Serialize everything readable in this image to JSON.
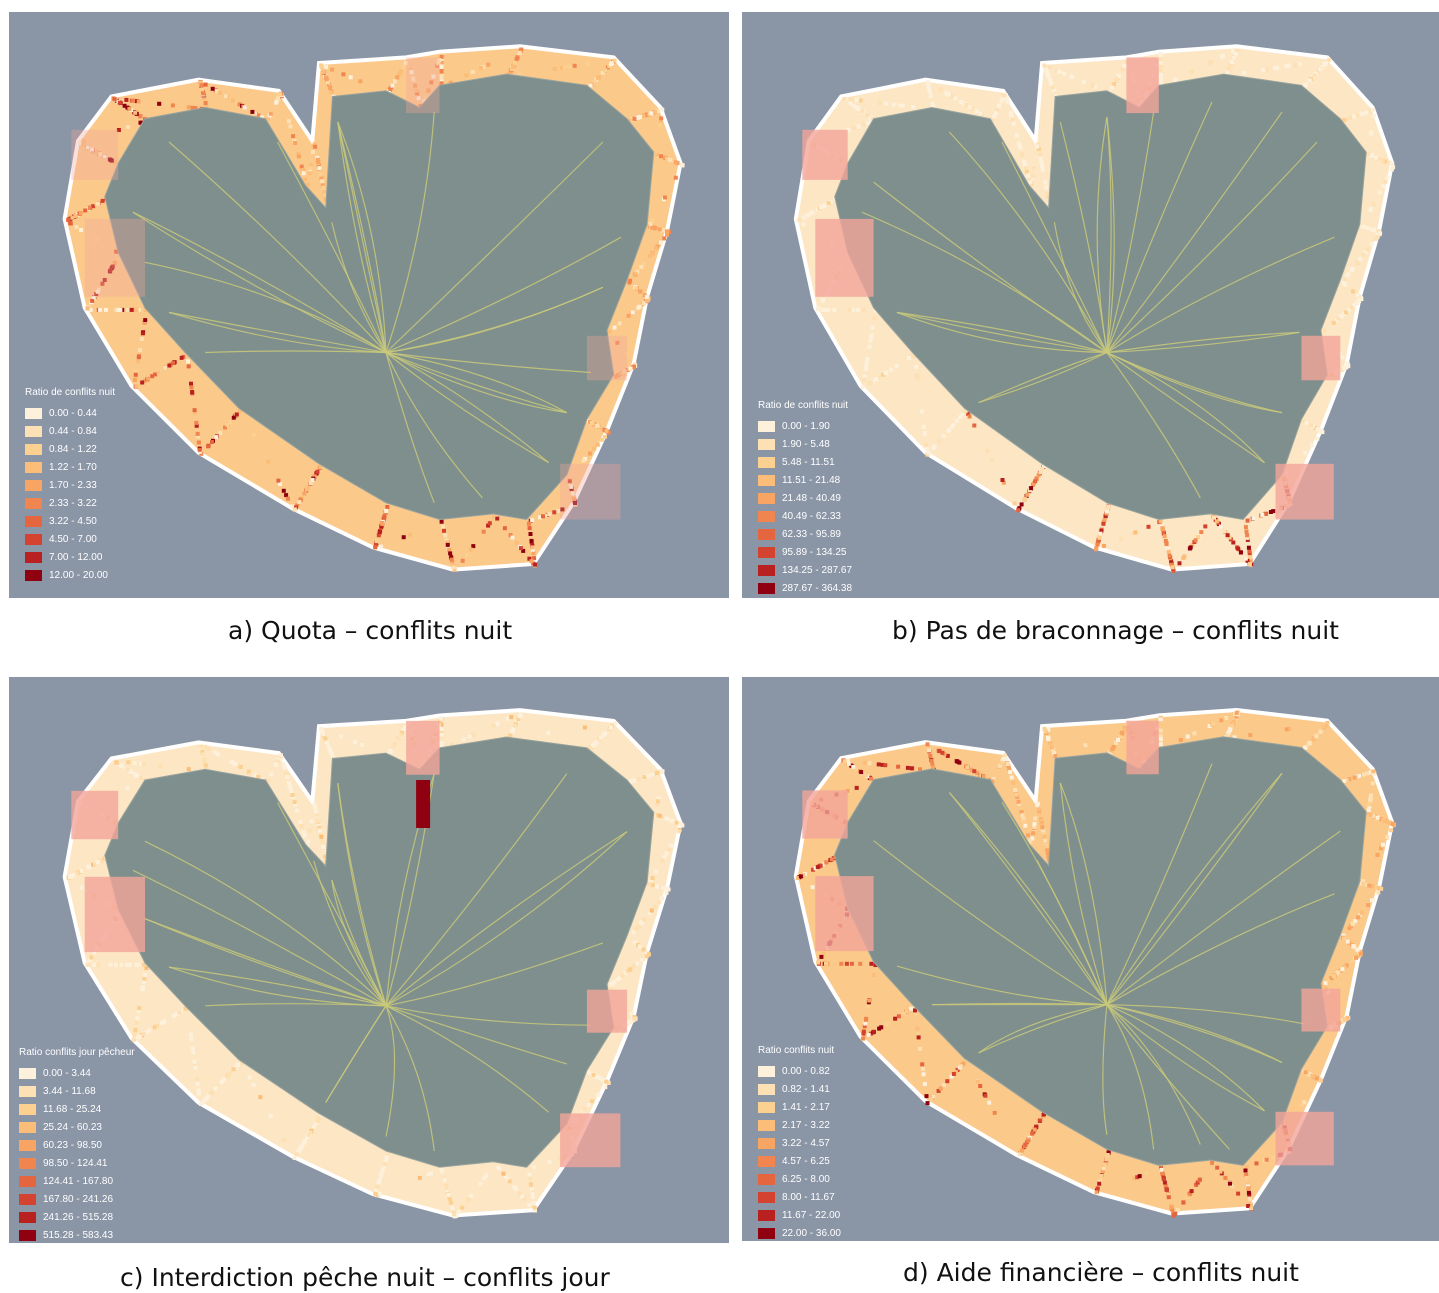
{
  "panels": [
    {
      "id": "a",
      "caption": "a)  Quota – conflits nuit",
      "legend_title": "Ratio de conflits nuit",
      "pattern": "western_hot",
      "legend": [
        {
          "label": "0.00 - 0.44",
          "color": "#fdf1dc"
        },
        {
          "label": "0.44 - 0.84",
          "color": "#fde0b3"
        },
        {
          "label": "0.84 - 1.22",
          "color": "#fcd090"
        },
        {
          "label": "1.22 - 1.70",
          "color": "#fbbd78"
        },
        {
          "label": "1.70 - 2.33",
          "color": "#f8a463"
        },
        {
          "label": "2.33 - 3.22",
          "color": "#f1854f"
        },
        {
          "label": "3.22 - 4.50",
          "color": "#e5653f"
        },
        {
          "label": "4.50 - 7.00",
          "color": "#d3432f"
        },
        {
          "label": "7.00 - 12.00",
          "color": "#b8211f"
        },
        {
          "label": "12.00 - 20.00",
          "color": "#8f0010"
        }
      ]
    },
    {
      "id": "b",
      "caption": "b)  Pas de braconnage – conflits nuit",
      "legend_title": "Ratio de conflits nuit",
      "pattern": "pale_zones",
      "legend": [
        {
          "label": "0.00 - 1.90",
          "color": "#fdf1dc"
        },
        {
          "label": "1.90 - 5.48",
          "color": "#fde0b3"
        },
        {
          "label": "5.48 - 11.51",
          "color": "#fcd090"
        },
        {
          "label": "11.51 - 21.48",
          "color": "#fbbd78"
        },
        {
          "label": "21.48 - 40.49",
          "color": "#f8a463"
        },
        {
          "label": "40.49 - 62.33",
          "color": "#f1854f"
        },
        {
          "label": "62.33 - 95.89",
          "color": "#e5653f"
        },
        {
          "label": "95.89 - 134.25",
          "color": "#d3432f"
        },
        {
          "label": "134.25 - 287.67",
          "color": "#b8211f"
        },
        {
          "label": "287.67 - 364.38",
          "color": "#8f0010"
        }
      ]
    },
    {
      "id": "c",
      "caption": "c)  Interdiction pêche nuit – conflits jour",
      "legend_title": "Ratio conflits jour pêcheur",
      "pattern": "bay_hot",
      "legend": [
        {
          "label": "0.00 - 3.44",
          "color": "#fdf1dc"
        },
        {
          "label": "3.44 - 11.68",
          "color": "#fde0b3"
        },
        {
          "label": "11.68 - 25.24",
          "color": "#fcd090"
        },
        {
          "label": "25.24 - 60.23",
          "color": "#fbbd78"
        },
        {
          "label": "60.23 - 98.50",
          "color": "#f8a463"
        },
        {
          "label": "98.50 - 124.41",
          "color": "#f1854f"
        },
        {
          "label": "124.41 - 167.80",
          "color": "#e5653f"
        },
        {
          "label": "167.80 - 241.26",
          "color": "#d3432f"
        },
        {
          "label": "241.26 - 515.28",
          "color": "#b8211f"
        },
        {
          "label": "515.28 - 583.43",
          "color": "#8f0010"
        }
      ]
    },
    {
      "id": "d",
      "caption": "d)  Aide financière – conflits nuit",
      "legend_title": "Ratio conflits nuit",
      "pattern": "mixed_hot",
      "legend": [
        {
          "label": "0.00 - 0.82",
          "color": "#fdf1dc"
        },
        {
          "label": "0.82 - 1.41",
          "color": "#fde0b3"
        },
        {
          "label": "1.41 - 2.17",
          "color": "#fcd090"
        },
        {
          "label": "2.17 - 3.22",
          "color": "#fbbd78"
        },
        {
          "label": "3.22 - 4.57",
          "color": "#f8a463"
        },
        {
          "label": "4.57 - 6.25",
          "color": "#f1854f"
        },
        {
          "label": "6.25 - 8.00",
          "color": "#e5653f"
        },
        {
          "label": "8.00 - 11.67",
          "color": "#d3432f"
        },
        {
          "label": "11.67 - 22.00",
          "color": "#b8211f"
        },
        {
          "label": "22.00 - 36.00",
          "color": "#8f0010"
        }
      ]
    }
  ],
  "colors": {
    "ocean": "#8a95a6",
    "island": "#7f8f8d",
    "rivers": "#c9c97a",
    "reef_outline": "#ffffff",
    "reserve": "#f2a59a"
  }
}
